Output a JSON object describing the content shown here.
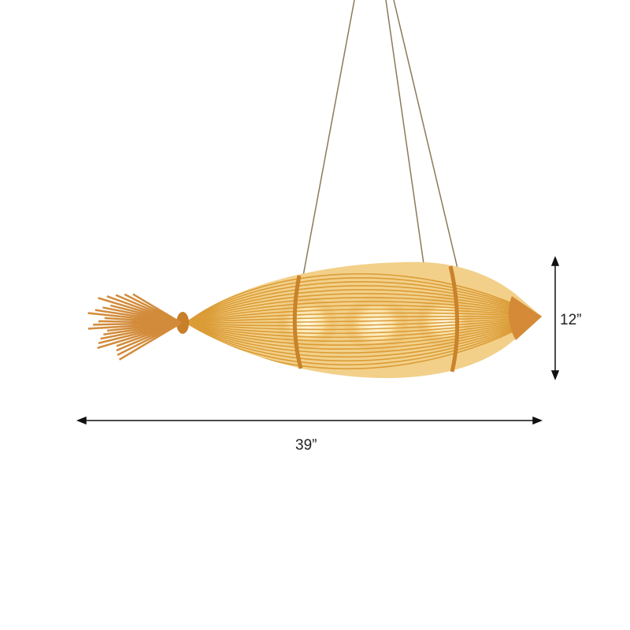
{
  "product": {
    "description_visible": "",
    "colors": {
      "bamboo": "#e0a445",
      "bamboo_dark": "#c9832a",
      "glow": "#fff6dc",
      "wire": "#8a7a5a"
    }
  },
  "dimensions": {
    "width_label": "39”",
    "height_label": "12”"
  }
}
